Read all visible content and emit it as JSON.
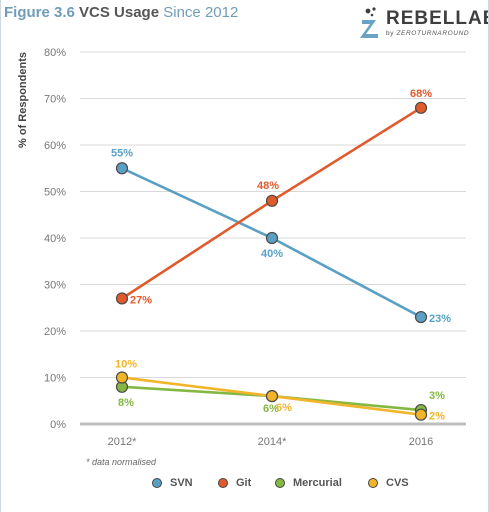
{
  "header": {
    "figure": "Figure 3.6",
    "strong": "VCS Usage",
    "rest": "Since 2012"
  },
  "logo": {
    "brand": "REBELLABS",
    "byline_prefix": "by ",
    "byline_brand": "ZEROTURNAROUND"
  },
  "footnote": "* data normalised",
  "chart_data": {
    "type": "line",
    "ylabel": "% of Respondents",
    "xlabel": "",
    "x": [
      "2012*",
      "2014*",
      "2016"
    ],
    "ylim": [
      0,
      80
    ],
    "yticks": [
      "0%",
      "10%",
      "20%",
      "30%",
      "40%",
      "50%",
      "60%",
      "70%",
      "80%"
    ],
    "grid": true,
    "legend_position": "bottom",
    "series": [
      {
        "name": "SVN",
        "color": "#5aa0c4",
        "values": [
          55,
          40,
          23
        ],
        "labels": [
          "55%",
          "40%",
          "23%"
        ]
      },
      {
        "name": "Git",
        "color": "#e05a2b",
        "values": [
          27,
          48,
          68
        ],
        "labels": [
          "27%",
          "48%",
          "68%"
        ]
      },
      {
        "name": "Mercurial",
        "color": "#84b843",
        "values": [
          8,
          6,
          3
        ],
        "labels": [
          "8%",
          "6%",
          "3%"
        ]
      },
      {
        "name": "CVS",
        "color": "#f2b52a",
        "values": [
          10,
          6,
          2
        ],
        "labels": [
          "10%",
          "6%",
          "2%"
        ]
      }
    ]
  }
}
